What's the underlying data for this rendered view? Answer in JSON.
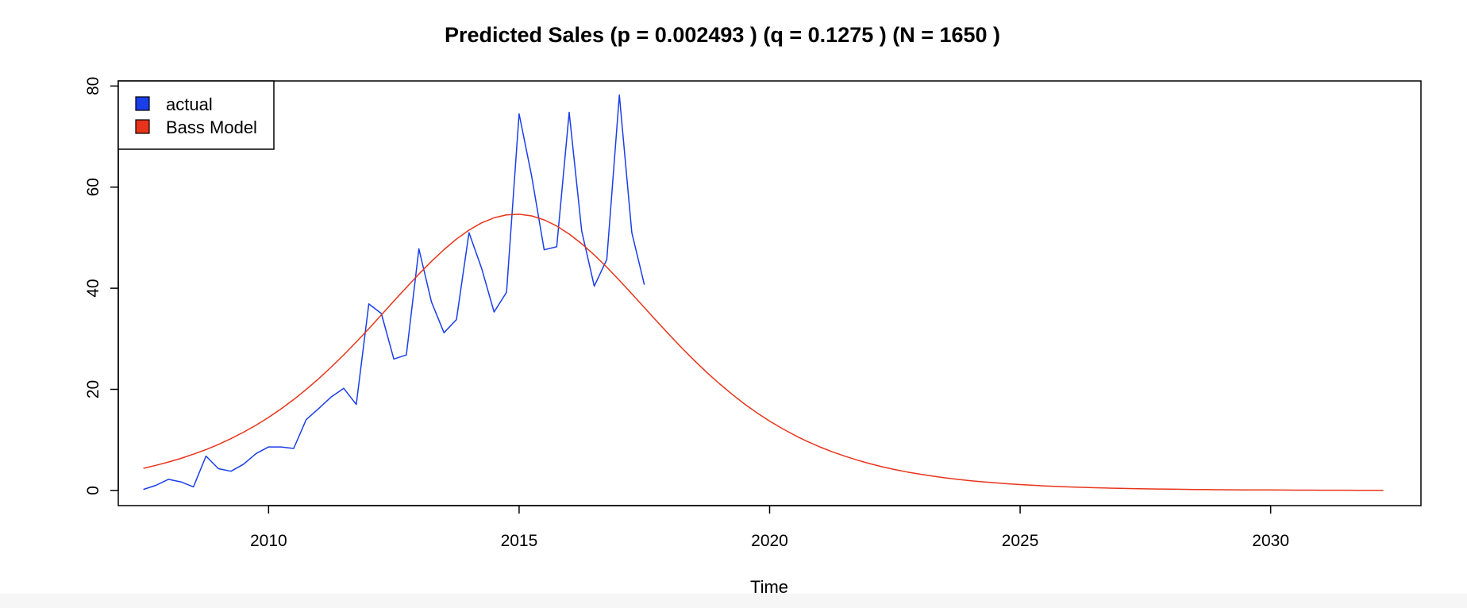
{
  "chart_data": {
    "type": "line",
    "title": "Predicted Sales (p =  0.002493 )  (q =  0.1275 )  (N =  1650 )",
    "xlabel": "Time",
    "ylabel": "",
    "xlim": [
      2007.0,
      2033.0
    ],
    "ylim": [
      -3,
      81
    ],
    "x_ticks": [
      2010,
      2015,
      2020,
      2025,
      2030
    ],
    "x_tick_labels": [
      "2010",
      "2015",
      "2020",
      "2025",
      "2030"
    ],
    "y_ticks": [
      0,
      20,
      40,
      60,
      80
    ],
    "y_tick_labels": [
      "0",
      "20",
      "40",
      "60",
      "80"
    ],
    "grid": false,
    "legend_position": "top-left",
    "series": [
      {
        "name": "actual",
        "color": "#1a3ee8",
        "points": [
          [
            2007.5,
            0.2
          ],
          [
            2007.75,
            1.0
          ],
          [
            2008.0,
            2.2
          ],
          [
            2008.25,
            1.7
          ],
          [
            2008.5,
            0.7
          ],
          [
            2008.75,
            6.8
          ],
          [
            2009.0,
            4.3
          ],
          [
            2009.25,
            3.8
          ],
          [
            2009.5,
            5.2
          ],
          [
            2009.75,
            7.3
          ],
          [
            2010.0,
            8.6
          ],
          [
            2010.25,
            8.6
          ],
          [
            2010.5,
            8.3
          ],
          [
            2010.75,
            14.0
          ],
          [
            2011.0,
            16.2
          ],
          [
            2011.25,
            18.5
          ],
          [
            2011.5,
            20.2
          ],
          [
            2011.75,
            17.0
          ],
          [
            2012.0,
            36.9
          ],
          [
            2012.25,
            35.0
          ],
          [
            2012.5,
            26.0
          ],
          [
            2012.75,
            26.8
          ],
          [
            2013.0,
            47.8
          ],
          [
            2013.25,
            37.3
          ],
          [
            2013.5,
            31.2
          ],
          [
            2013.75,
            33.8
          ],
          [
            2014.0,
            51.0
          ],
          [
            2014.25,
            44.0
          ],
          [
            2014.5,
            35.3
          ],
          [
            2014.75,
            39.2
          ],
          [
            2015.0,
            74.5
          ],
          [
            2015.25,
            62.2
          ],
          [
            2015.5,
            47.6
          ],
          [
            2015.75,
            48.2
          ],
          [
            2016.0,
            74.8
          ],
          [
            2016.25,
            51.3
          ],
          [
            2016.5,
            40.4
          ],
          [
            2016.75,
            45.7
          ],
          [
            2017.0,
            78.2
          ],
          [
            2017.25,
            51.0
          ],
          [
            2017.5,
            40.7
          ]
        ]
      },
      {
        "name": "Bass Model",
        "color": "#e8341a",
        "bass_params": {
          "p": 0.002493,
          "q": 0.1275,
          "N": 1650
        },
        "x_start": 2007.5,
        "x_end": 2032.25,
        "step": 0.25,
        "scale": 4
      }
    ]
  }
}
